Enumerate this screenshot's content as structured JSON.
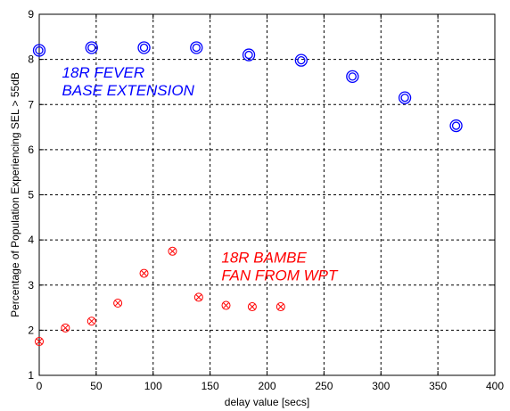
{
  "chart_data": {
    "type": "scatter",
    "title": "",
    "xlabel": "delay value [secs]",
    "ylabel": "Percentage of Population Experiencing SEL > 55dB",
    "xlim": [
      0,
      400
    ],
    "ylim": [
      1,
      9
    ],
    "xticks": [
      "0",
      "50",
      "100",
      "150",
      "200",
      "250",
      "300",
      "350",
      "400"
    ],
    "yticks": [
      "1",
      "2",
      "3",
      "4",
      "5",
      "6",
      "7",
      "8",
      "9"
    ],
    "grid": true,
    "series": [
      {
        "name": "18R FEVER BASE EXTENSION",
        "color": "#0000ff",
        "marker": "double-circle",
        "x": [
          0,
          46,
          92,
          138,
          184,
          230,
          275,
          321,
          366
        ],
        "y": [
          8.2,
          8.26,
          8.26,
          8.26,
          8.1,
          7.98,
          7.62,
          7.15,
          6.53
        ]
      },
      {
        "name": "18R BAMBE FAN FROM WPT",
        "color": "#ff0000",
        "marker": "circle-x",
        "x": [
          0,
          23,
          46,
          69,
          92,
          117,
          140,
          164,
          187,
          212
        ],
        "y": [
          1.75,
          2.05,
          2.2,
          2.6,
          3.26,
          3.75,
          2.73,
          2.55,
          2.52,
          2.52
        ]
      }
    ],
    "annotations": [
      {
        "lines": [
          "18R FEVER",
          "BASE EXTENSION"
        ],
        "color": "#0000ff",
        "x": 20,
        "y": 7.6
      },
      {
        "lines": [
          "18R BAMBE",
          "FAN FROM WPT"
        ],
        "color": "#ff0000",
        "x": 160,
        "y": 3.5
      }
    ]
  }
}
